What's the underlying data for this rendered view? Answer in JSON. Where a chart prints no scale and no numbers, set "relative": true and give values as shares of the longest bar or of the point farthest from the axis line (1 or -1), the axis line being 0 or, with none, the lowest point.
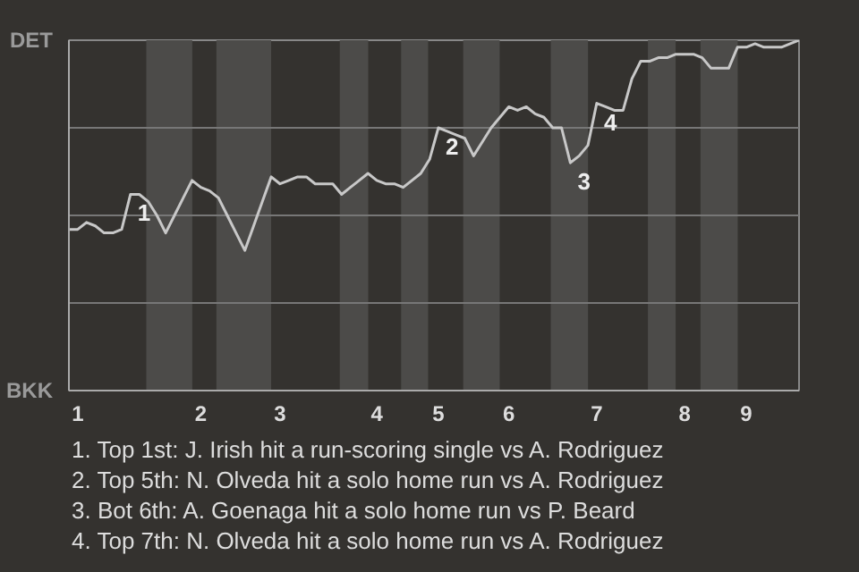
{
  "chart_data": {
    "type": "line",
    "relative": true,
    "categories": [
      null,
      "1",
      null,
      null,
      null,
      null,
      null,
      null,
      null,
      null,
      null,
      null,
      null,
      null,
      null,
      "2",
      null,
      null,
      null,
      null,
      null,
      null,
      null,
      null,
      "3",
      null,
      null,
      null,
      null,
      null,
      null,
      null,
      null,
      null,
      null,
      "4",
      null,
      null,
      null,
      null,
      null,
      null,
      "5",
      null,
      null,
      null,
      null,
      null,
      null,
      null,
      "6",
      null,
      null,
      null,
      null,
      null,
      null,
      null,
      null,
      null,
      "7",
      null,
      null,
      null,
      null,
      null,
      null,
      null,
      null,
      null,
      "8",
      null,
      null,
      null,
      null,
      null,
      null,
      "9",
      null,
      null,
      null,
      null,
      null,
      null
    ],
    "series": [
      {
        "color": "#c8c8c8",
        "values": [
          0.46,
          0.46,
          0.48,
          0.47,
          0.45,
          0.45,
          0.46,
          0.56,
          0.56,
          0.54,
          0.5,
          0.45,
          0.5,
          0.55,
          0.6,
          0.58,
          0.57,
          0.55,
          0.5,
          0.45,
          0.4,
          0.47,
          0.54,
          0.61,
          0.59,
          0.6,
          0.61,
          0.61,
          0.59,
          0.59,
          0.59,
          0.56,
          0.58,
          0.6,
          0.62,
          0.6,
          0.59,
          0.59,
          0.58,
          0.6,
          0.62,
          0.66,
          0.75,
          0.74,
          0.73,
          0.72,
          0.67,
          0.71,
          0.75,
          0.78,
          0.81,
          0.8,
          0.81,
          0.79,
          0.78,
          0.75,
          0.75,
          0.65,
          0.67,
          0.7,
          0.82,
          0.81,
          0.8,
          0.8,
          0.89,
          0.94,
          0.94,
          0.95,
          0.95,
          0.96,
          0.96,
          0.96,
          0.95,
          0.92,
          0.92,
          0.92,
          0.98,
          0.98,
          0.99,
          0.98,
          0.98,
          0.98,
          0.99,
          1
        ]
      }
    ],
    "annotations": [
      "DET",
      "BKK",
      {
        "text": "1",
        "y": 0.56
      },
      {
        "text": "2",
        "y": 0.75
      },
      {
        "text": "3",
        "y": 0.65
      },
      {
        "text": "4",
        "y": 0.82
      },
      "1. Top 1st: J. Irish hit a run-scoring single vs A. Rodriguez",
      "2. Top 5th: N. Olveda hit a solo home run vs A. Rodriguez",
      "3. Bot 6th: A. Goenaga hit a solo home run vs P. Beard",
      "4. Top 7th: N. Olveda hit a solo home run vs A. Rodriguez"
    ]
  }
}
